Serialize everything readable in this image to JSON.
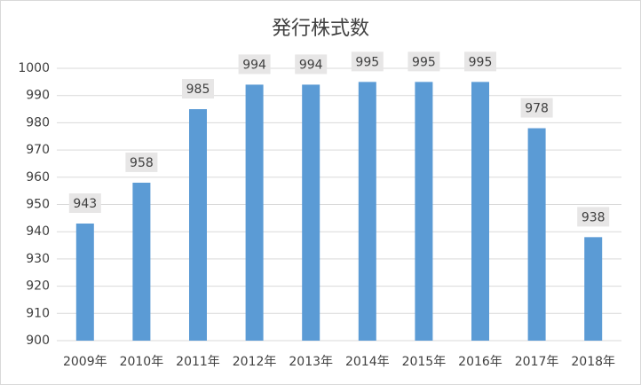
{
  "chart_data": {
    "type": "bar",
    "title": "発行株式数",
    "categories": [
      "2009年",
      "2010年",
      "2011年",
      "2012年",
      "2013年",
      "2014年",
      "2015年",
      "2016年",
      "2017年",
      "2018年"
    ],
    "values": [
      943,
      958,
      985,
      994,
      994,
      995,
      995,
      995,
      978,
      938
    ],
    "color": "#5b9bd5",
    "ylim": [
      900,
      1000
    ],
    "yticks": [
      900,
      910,
      920,
      930,
      940,
      950,
      960,
      970,
      980,
      990,
      1000
    ],
    "grid": true
  }
}
